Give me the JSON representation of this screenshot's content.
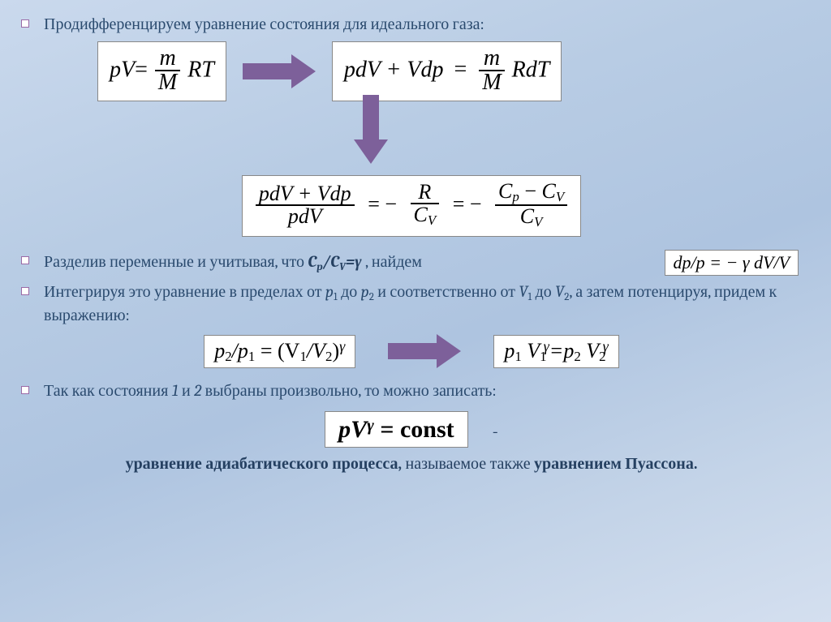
{
  "bullets": {
    "b1": "Продифференцируем уравнение состояния для идеального газа:",
    "b2_pre": "Разделив переменные и учитывая, что ",
    "b2_formula_cp": "C",
    "b2_formula_cv": "C",
    "b2_formula_gamma": "=γ",
    "b2_post": " , найдем",
    "b3_pre": "Интегрируя это уравнение в пределах от ",
    "b3_p1": "p",
    "b3_mid1": " до ",
    "b3_p2": "p",
    "b3_mid2": " и соответственно от ",
    "b3_v1": "V",
    "b3_mid3": " до ",
    "b3_v2": "V",
    "b3_post": ", а затем потенцируя, придем к выражению:",
    "b4_pre": "Так как состояния ",
    "b4_one": "1",
    "b4_mid": " и ",
    "b4_two": "2",
    "b4_post": " выбраны произвольно, то можно записать:"
  },
  "equations": {
    "eq1_lhs_pV": "pV",
    "eq1_eq": "=",
    "eq1_num": "m",
    "eq1_den": "M",
    "eq1_rhs": "RT",
    "eq2": "pdV + Vdp",
    "eq2_eq": "=",
    "eq2_num": "m",
    "eq2_den": "M",
    "eq2_rhs": "RdT",
    "eq3_num": "pdV + Vdp",
    "eq3_den": "pdV",
    "eq3_eq1": "= −",
    "eq3_f2_num": "R",
    "eq3_f2_den": "C",
    "eq3_f2_den_sub": "V",
    "eq3_eq2": "= −",
    "eq3_f3_num_l": "C",
    "eq3_f3_num_sub_p": "p",
    "eq3_f3_num_minus": "−",
    "eq3_f3_num_r": "C",
    "eq3_f3_num_sub_v": "V",
    "eq3_f3_den": "C",
    "eq3_f3_den_sub": "V",
    "eq4": "dp/p = − γ dV/V",
    "eq5_lhs": "p",
    "eq5_sub2": "2",
    "eq5_slash": "/p",
    "eq5_sub1": "1",
    "eq5_eq": " = (V",
    "eq5_v1sub": "1",
    "eq5_slash2": "/V",
    "eq5_v2sub": "2",
    "eq5_close": ")",
    "eq5_gamma": "γ",
    "eq6_l": "p",
    "eq6_1": "1",
    "eq6_V": "V",
    "eq6_g": "γ",
    "eq6_eq": "=p",
    "eq6_2": "2",
    "eq7_l": "pV",
    "eq7_g": "γ",
    "eq7_r": " = const"
  },
  "caption": {
    "bold1": "уравнение адиабатического процесса,",
    "mid": " называемое также ",
    "bold2": "уравнением Пуассона."
  },
  "colors": {
    "accent": "#7d609a",
    "text": "#254061",
    "bg1": "#cad9ed"
  }
}
